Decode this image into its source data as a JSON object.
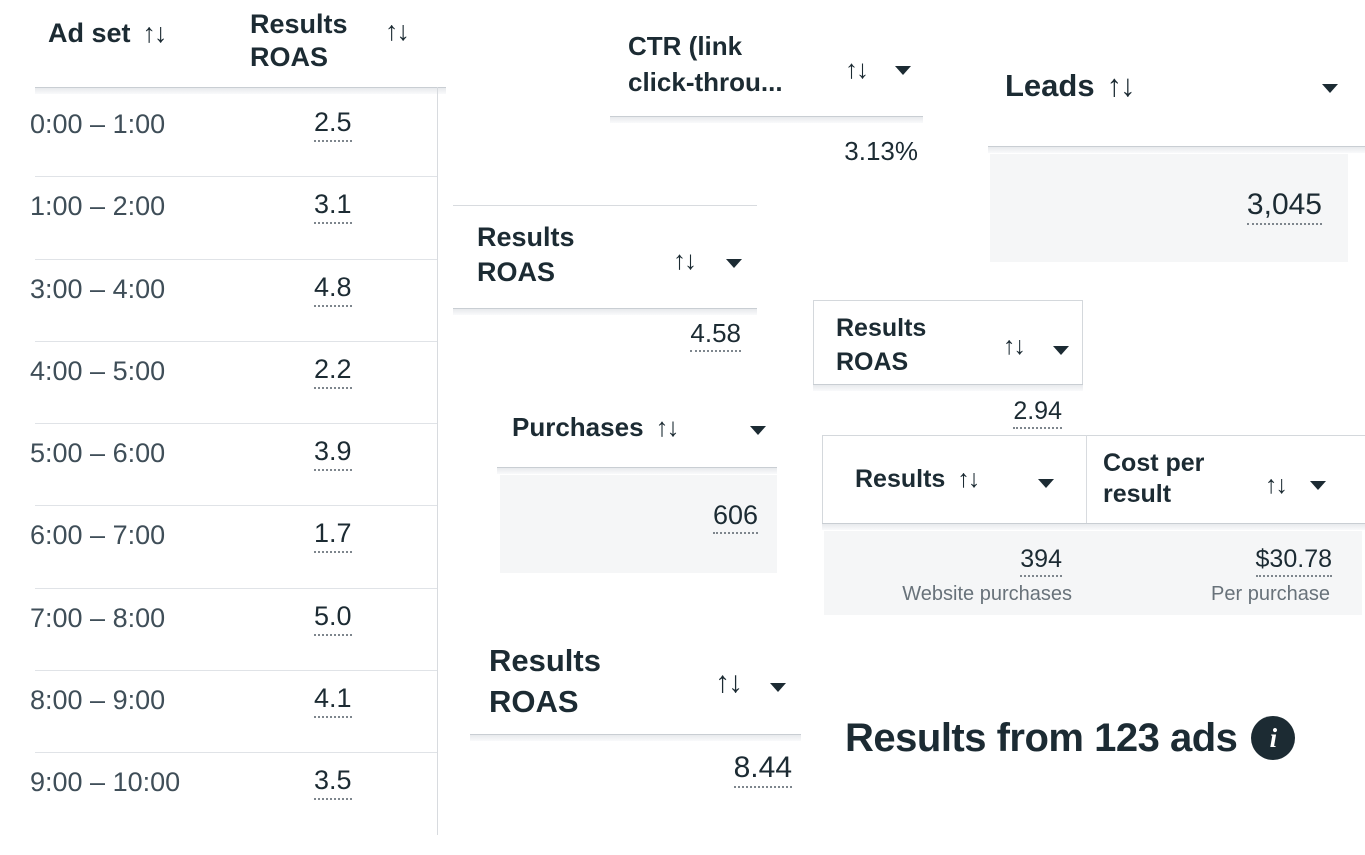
{
  "ui": {
    "sort_icon": "↑↓"
  },
  "colors": {
    "primary_text": "#1c2b33",
    "secondary_text": "#3f4e58",
    "subtext": "#68727a",
    "cell_background": "#f5f6f7",
    "divider": "#d8dbdf"
  },
  "adset_table": {
    "col1_header": "Ad set",
    "col2_header": "Results ROAS",
    "rows": [
      {
        "time": "0:00 – 1:00",
        "roas": "2.5"
      },
      {
        "time": "1:00 – 2:00",
        "roas": "3.1"
      },
      {
        "time": "3:00 – 4:00",
        "roas": "4.8"
      },
      {
        "time": "4:00 – 5:00",
        "roas": "2.2"
      },
      {
        "time": "5:00 – 6:00",
        "roas": "3.9"
      },
      {
        "time": "6:00 – 7:00",
        "roas": "1.7"
      },
      {
        "time": "7:00 – 8:00",
        "roas": "5.0"
      },
      {
        "time": "8:00 – 9:00",
        "roas": "4.1"
      },
      {
        "time": "9:00 – 10:00",
        "roas": "3.5"
      }
    ]
  },
  "fragments": {
    "ctr": {
      "label": "CTR (link click-throu...",
      "value": "3.13%"
    },
    "roas_mid": {
      "label": "Results ROAS",
      "value": "4.58"
    },
    "purchases": {
      "label": "Purchases",
      "value": "606"
    },
    "roas_large": {
      "label": "Results ROAS",
      "value": "8.44"
    },
    "leads": {
      "label": "Leads",
      "value": "3,045"
    },
    "roas_box": {
      "label": "Results ROAS",
      "value": "2.94"
    },
    "results_cost": {
      "col1_header": "Results",
      "col2_header": "Cost per result",
      "col1_value": "394",
      "col1_subtext": "Website purchases",
      "col2_value": "$30.78",
      "col2_subtext": "Per purchase"
    },
    "results_from": {
      "text": "Results from 123 ads",
      "info_icon_glyph": "i"
    }
  }
}
